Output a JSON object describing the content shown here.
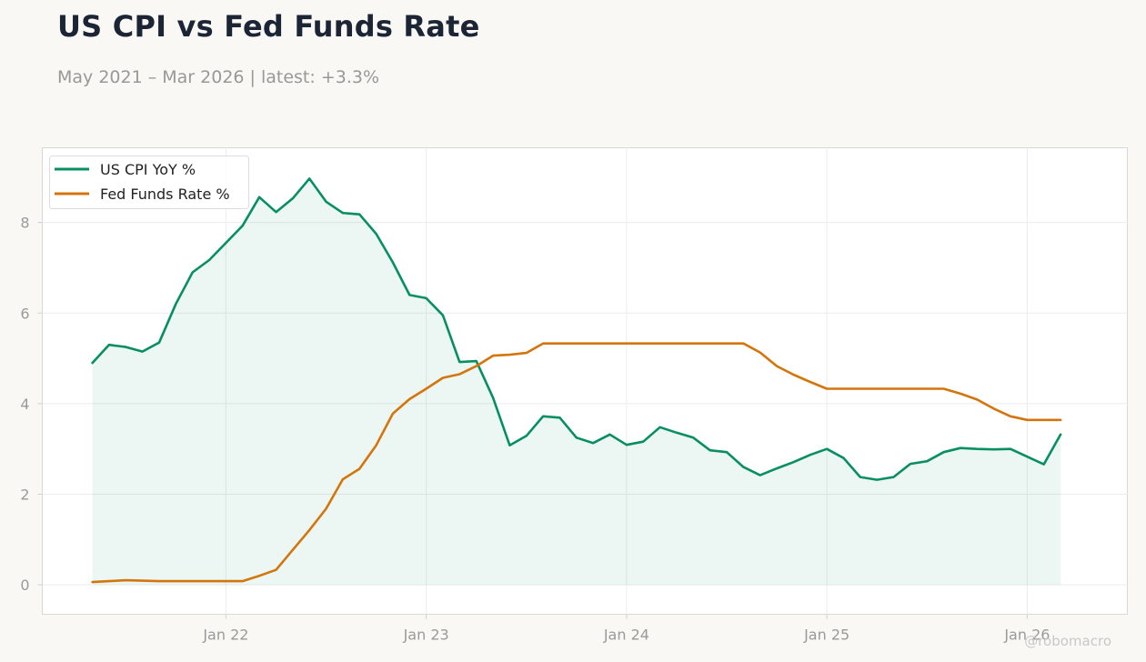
{
  "header": {
    "title": "US CPI vs Fed Funds Rate",
    "subtitle": "May 2021 – Mar 2026 | latest: +3.3%"
  },
  "watermark": "@robomacro",
  "colors": {
    "cpi": "#078f62",
    "fed": "#d4750c",
    "cpi_fill": "#078f62",
    "grid": "#ececea",
    "frame": "#d9d9d4"
  },
  "chart_data": {
    "type": "line",
    "x_start": "2021-05",
    "x": [
      "2021-05",
      "2021-06",
      "2021-07",
      "2021-08",
      "2021-09",
      "2021-10",
      "2021-11",
      "2021-12",
      "2022-01",
      "2022-02",
      "2022-03",
      "2022-04",
      "2022-05",
      "2022-06",
      "2022-07",
      "2022-08",
      "2022-09",
      "2022-10",
      "2022-11",
      "2022-12",
      "2023-01",
      "2023-02",
      "2023-03",
      "2023-04",
      "2023-05",
      "2023-06",
      "2023-07",
      "2023-08",
      "2023-09",
      "2023-10",
      "2023-11",
      "2023-12",
      "2024-01",
      "2024-02",
      "2024-03",
      "2024-04",
      "2024-05",
      "2024-06",
      "2024-07",
      "2024-08",
      "2024-09",
      "2024-10",
      "2024-11",
      "2024-12",
      "2025-01",
      "2025-02",
      "2025-03",
      "2025-04",
      "2025-05",
      "2025-06",
      "2025-07",
      "2025-08",
      "2025-09",
      "2025-10",
      "2025-11",
      "2025-12",
      "2026-01",
      "2026-02",
      "2026-03"
    ],
    "series": [
      {
        "name": "US CPI YoY %",
        "fill": true,
        "values": [
          4.9,
          5.3,
          5.25,
          5.15,
          5.35,
          6.2,
          6.9,
          7.17,
          7.55,
          7.93,
          8.56,
          8.23,
          8.53,
          8.97,
          8.46,
          8.21,
          8.18,
          7.75,
          7.12,
          6.4,
          6.33,
          5.95,
          4.92,
          4.94,
          4.13,
          3.08,
          3.29,
          3.72,
          3.69,
          3.25,
          3.13,
          3.32,
          3.09,
          3.16,
          3.48,
          3.36,
          3.25,
          2.97,
          2.93,
          2.6,
          2.42,
          2.57,
          2.71,
          2.87,
          3.0,
          2.8,
          2.38,
          2.32,
          2.38,
          2.67,
          2.73,
          2.93,
          3.02,
          3.0,
          2.99,
          3.0,
          2.83,
          2.66,
          3.32
        ]
      },
      {
        "name": "Fed Funds Rate %",
        "fill": false,
        "values": [
          0.06,
          0.08,
          0.1,
          0.09,
          0.08,
          0.08,
          0.08,
          0.08,
          0.08,
          0.08,
          0.2,
          0.33,
          0.77,
          1.21,
          1.68,
          2.33,
          2.56,
          3.08,
          3.78,
          4.1,
          4.33,
          4.57,
          4.65,
          4.83,
          5.06,
          5.08,
          5.12,
          5.33,
          5.33,
          5.33,
          5.33,
          5.33,
          5.33,
          5.33,
          5.33,
          5.33,
          5.33,
          5.33,
          5.33,
          5.33,
          5.13,
          4.83,
          4.64,
          4.48,
          4.33,
          4.33,
          4.33,
          4.33,
          4.33,
          4.33,
          4.33,
          4.33,
          4.22,
          4.09,
          3.89,
          3.72,
          3.64,
          3.64,
          3.64
        ]
      }
    ],
    "x_ticks": [
      {
        "x": "2022-01",
        "label": "Jan 22"
      },
      {
        "x": "2023-01",
        "label": "Jan 23"
      },
      {
        "x": "2024-01",
        "label": "Jan 24"
      },
      {
        "x": "2025-01",
        "label": "Jan 25"
      },
      {
        "x": "2026-01",
        "label": "Jan 26"
      }
    ],
    "y_ticks": [
      0,
      2,
      4,
      6,
      8
    ],
    "xlim": [
      "2021-02",
      "2026-07"
    ],
    "ylim": [
      -0.65,
      9.65
    ],
    "grid": true,
    "legend_position": "top-left"
  }
}
